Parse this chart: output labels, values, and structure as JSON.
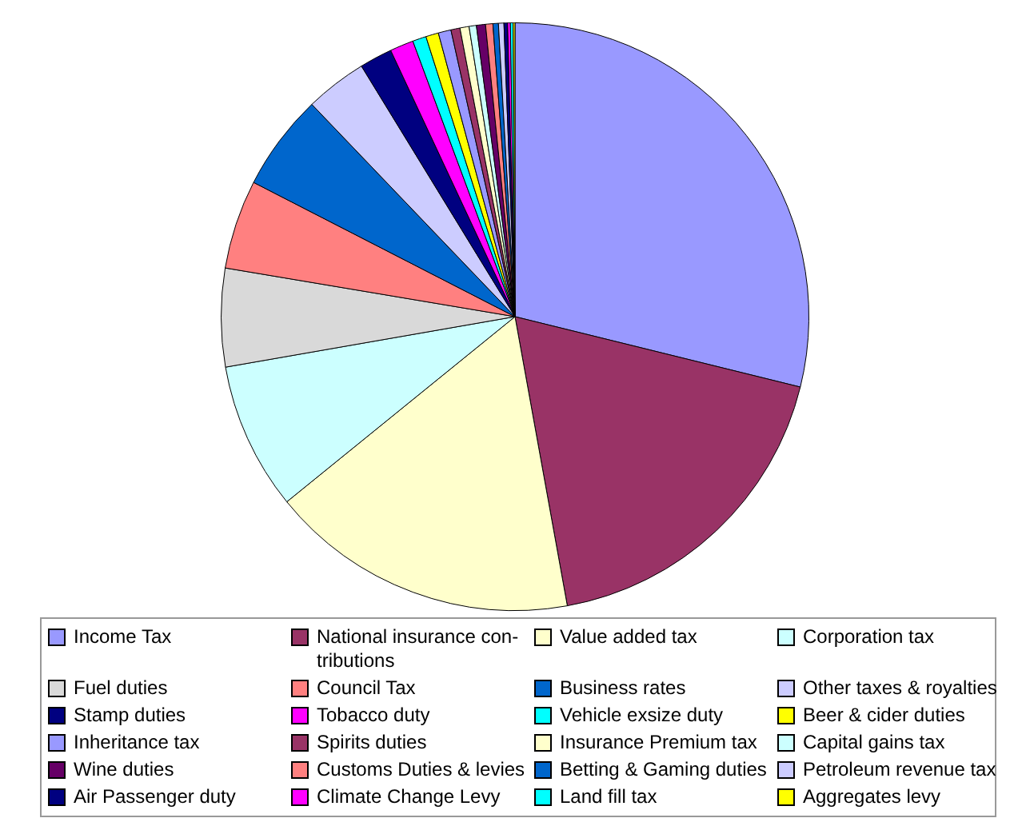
{
  "chart_data": {
    "type": "pie",
    "legend": "bottom",
    "categories": [
      "Income Tax",
      "National insurance con-tributions",
      "Value added tax",
      "Corporation tax",
      "Fuel duties",
      "Council Tax",
      "Business rates",
      "Other taxes & royalties",
      "Stamp duties",
      "Tobacco duty",
      "Vehicle exsize duty",
      "Beer & cider duties",
      "Inheritance tax",
      "Spirits duties",
      "Insurance Premium tax",
      "Capital gains tax",
      "Wine duties",
      "Customs Duties & levies",
      "Betting & Gaming duties",
      "Petroleum revenue tax",
      "Air Passenger duty",
      "Climate Change Levy",
      "Land fill tax",
      "Aggregates levy"
    ],
    "values": [
      28.85,
      18.3,
      17.0,
      8.1,
      5.4,
      4.9,
      5.3,
      3.4,
      1.8,
      1.3,
      0.75,
      0.7,
      0.7,
      0.5,
      0.5,
      0.4,
      0.5,
      0.4,
      0.3,
      0.3,
      0.2,
      0.15,
      0.15,
      0.1
    ],
    "colors": [
      "#9999ff",
      "#993366",
      "#ffffcc",
      "#ccffff",
      "#d9d9d9",
      "#ff8080",
      "#0066cc",
      "#ccccff",
      "#000080",
      "#ff00ff",
      "#00ffff",
      "#ffff00",
      "#9999ff",
      "#993366",
      "#ffffcc",
      "#ccffff",
      "#660066",
      "#ff8080",
      "#0066cc",
      "#ccccff",
      "#000080",
      "#ff00ff",
      "#00ffff",
      "#ffff00"
    ]
  }
}
